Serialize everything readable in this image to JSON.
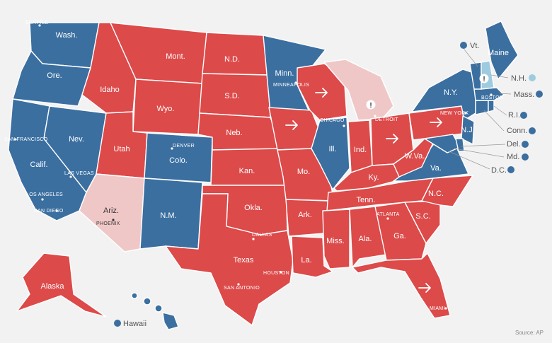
{
  "colors": {
    "dem": "#3b6fa0",
    "rep": "#dc4a4a",
    "dem_light": "#9ecbe0",
    "rep_light": "#f0c7c7",
    "line": "#ffffff",
    "background": "#f2f2f2"
  },
  "states": {
    "wa": {
      "label": "Wash.",
      "party": "dem"
    },
    "or": {
      "label": "Ore.",
      "party": "dem"
    },
    "ca": {
      "label": "Calif.",
      "party": "dem"
    },
    "nv": {
      "label": "Nev.",
      "party": "dem"
    },
    "id": {
      "label": "Idaho",
      "party": "rep"
    },
    "mt": {
      "label": "Mont.",
      "party": "rep"
    },
    "wy": {
      "label": "Wyo.",
      "party": "rep"
    },
    "ut": {
      "label": "Utah",
      "party": "rep"
    },
    "az": {
      "label": "Ariz.",
      "party": "rep_light"
    },
    "co": {
      "label": "Colo.",
      "party": "dem"
    },
    "nm": {
      "label": "N.M.",
      "party": "dem"
    },
    "nd": {
      "label": "N.D.",
      "party": "rep"
    },
    "sd": {
      "label": "S.D.",
      "party": "rep"
    },
    "ne": {
      "label": "Neb.",
      "party": "rep"
    },
    "ks": {
      "label": "Kan.",
      "party": "rep"
    },
    "ok": {
      "label": "Okla.",
      "party": "rep"
    },
    "tx": {
      "label": "Texas",
      "party": "rep"
    },
    "mn": {
      "label": "Minn.",
      "party": "dem"
    },
    "ia": {
      "label": "",
      "party": "rep"
    },
    "mo": {
      "label": "Mo.",
      "party": "rep"
    },
    "ar": {
      "label": "Ark.",
      "party": "rep"
    },
    "la": {
      "label": "La.",
      "party": "rep"
    },
    "wi": {
      "label": "",
      "party": "rep"
    },
    "il": {
      "label": "Ill.",
      "party": "dem"
    },
    "mi": {
      "label": "",
      "party": "rep_light"
    },
    "in": {
      "label": "Ind.",
      "party": "rep"
    },
    "oh": {
      "label": "",
      "party": "rep"
    },
    "ky": {
      "label": "Ky.",
      "party": "rep"
    },
    "tn": {
      "label": "Tenn.",
      "party": "rep"
    },
    "ms": {
      "label": "Miss.",
      "party": "rep"
    },
    "al": {
      "label": "Ala.",
      "party": "rep"
    },
    "ga": {
      "label": "Ga.",
      "party": "rep"
    },
    "fl": {
      "label": "",
      "party": "rep"
    },
    "sc": {
      "label": "S.C.",
      "party": "rep"
    },
    "nc": {
      "label": "N.C.",
      "party": "rep"
    },
    "va": {
      "label": "Va.",
      "party": "dem"
    },
    "wv": {
      "label": "W.Va.",
      "party": "rep"
    },
    "pa": {
      "label": "",
      "party": "rep"
    },
    "ny": {
      "label": "N.Y.",
      "party": "dem"
    },
    "nj": {
      "label": "N.J.",
      "party": "dem"
    },
    "md": {
      "label": "",
      "party": "dem"
    },
    "de": {
      "label": "",
      "party": "dem"
    },
    "ct": {
      "label": "",
      "party": "dem"
    },
    "ri": {
      "label": "",
      "party": "dem"
    },
    "ma": {
      "label": "",
      "party": "dem"
    },
    "vt": {
      "label": "",
      "party": "dem"
    },
    "nh": {
      "label": "",
      "party": "dem_light"
    },
    "me": {
      "label": "Maine",
      "party": "dem"
    },
    "ak": {
      "label": "Alaska",
      "party": "rep"
    },
    "hi": {
      "label": "",
      "party": "dem"
    }
  },
  "cities": {
    "seattle": "SEATTLE",
    "san_francisco": "SAN FRANCISCO",
    "las_vegas": "LAS VEGAS",
    "los_angeles": "LOS ANGELES",
    "san_diego": "SAN DIEGO",
    "phoenix": "PHOENIX",
    "denver": "DENVER",
    "dallas": "DALLAS",
    "houston": "HOUSTON",
    "san_antonio": "SAN ANTONIO",
    "minneapolis": "MINNEAPOLIS",
    "chicago": "CHICAGO",
    "detroit": "DETROIT",
    "atlanta": "ATLANTA",
    "miami": "MIAMI",
    "new_york": "NEW YORK",
    "boston": "BOSTON"
  },
  "side_labels": {
    "vt": "Vt.",
    "nh": "N.H.",
    "ma": "Mass.",
    "ri": "R.I.",
    "ct": "Conn.",
    "de": "Del.",
    "md": "Md.",
    "dc": "D.C.",
    "hi": "Hawaii"
  },
  "source": "Source: AP"
}
